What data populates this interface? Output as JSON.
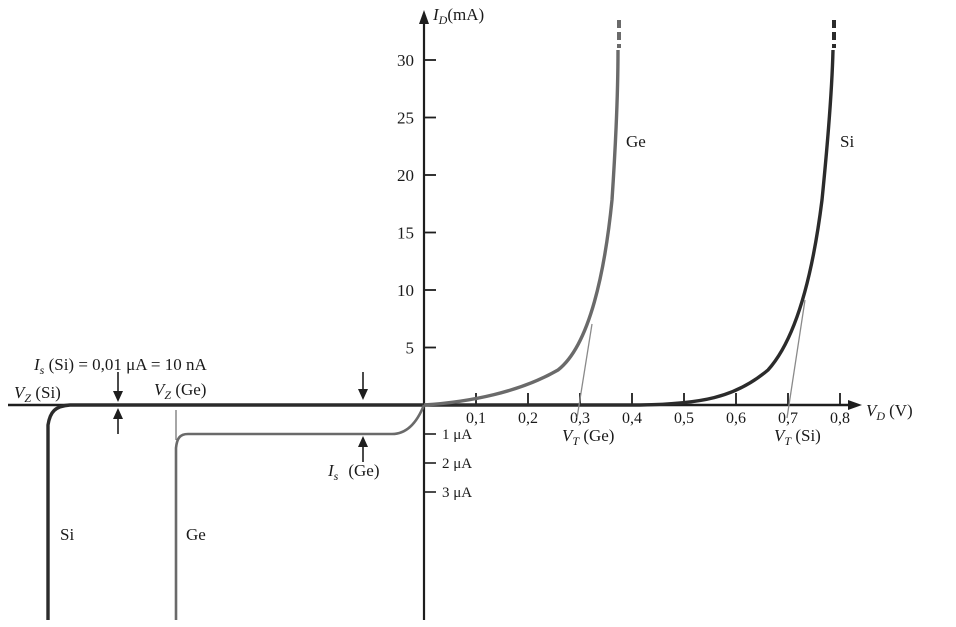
{
  "chart_data": {
    "type": "line",
    "title": "",
    "ylabel": "I_D (mA)",
    "ylabel_main": "I",
    "ylabel_sub": "D",
    "ylabel_unit": "(mA)",
    "xlabel": "V_D (V)",
    "xlabel_main": "V",
    "xlabel_sub": "D",
    "xlabel_unit": "(V)",
    "y_ticks": [
      5,
      10,
      15,
      20,
      25,
      30
    ],
    "y_tick_labels": [
      "5",
      "10",
      "15",
      "20",
      "25",
      "30"
    ],
    "x_ticks": [
      0.1,
      0.2,
      0.3,
      0.4,
      0.5,
      0.6,
      0.7,
      0.8
    ],
    "x_tick_labels": [
      "0,1",
      "0,2",
      "0,3",
      "0,4",
      "0,5",
      "0,6",
      "0,7",
      "0,8"
    ],
    "reverse_current_ticks_uA": [
      1,
      2,
      3
    ],
    "reverse_tick_labels": [
      "1 μA",
      "2 μA",
      "3 μA"
    ],
    "xlim": [
      0,
      0.8
    ],
    "ylim": [
      0,
      30
    ],
    "series": [
      {
        "name": "Ge",
        "color": "#5a5a5a",
        "points": [
          [
            0.0,
            0.0
          ],
          [
            0.05,
            0.1
          ],
          [
            0.1,
            0.3
          ],
          [
            0.15,
            0.6
          ],
          [
            0.2,
            1.2
          ],
          [
            0.25,
            2.5
          ],
          [
            0.3,
            5.0
          ],
          [
            0.32,
            8.0
          ],
          [
            0.34,
            14.0
          ],
          [
            0.36,
            22.0
          ],
          [
            0.375,
            30.0
          ]
        ]
      },
      {
        "name": "Si",
        "color": "#2b2b2b",
        "points": [
          [
            0.4,
            0.0
          ],
          [
            0.5,
            0.1
          ],
          [
            0.55,
            0.3
          ],
          [
            0.6,
            1.0
          ],
          [
            0.65,
            2.5
          ],
          [
            0.7,
            5.5
          ],
          [
            0.72,
            8.0
          ],
          [
            0.75,
            15.0
          ],
          [
            0.77,
            22.0
          ],
          [
            0.785,
            30.0
          ]
        ]
      }
    ],
    "annotations": {
      "is_si": {
        "prefix": "I",
        "sub": "s",
        "rest": " (Si) = 0,01 μA = 10 nA"
      },
      "vz_si": {
        "main": "V",
        "sub": "Z",
        "rest": " (Si)"
      },
      "vz_ge": {
        "main": "V",
        "sub": "Z",
        "rest": " (Ge)"
      },
      "is_ge": {
        "main": "I",
        "sub": "s",
        "rest": "(Ge)"
      },
      "vt_ge": {
        "main": "V",
        "sub": "T",
        "rest": " (Ge)"
      },
      "vt_si": {
        "main": "V",
        "sub": "T",
        "rest": " (Si)"
      },
      "ge_forward": "Ge",
      "si_forward": "Si",
      "si_reverse": "Si",
      "ge_reverse": "Ge"
    },
    "grid": false,
    "legend": "none"
  },
  "colors": {
    "axis": "#1e1e1e",
    "si_curve": "#2b2b2b",
    "ge_curve": "#6a6a6a",
    "tangent": "#8a8a8a"
  }
}
